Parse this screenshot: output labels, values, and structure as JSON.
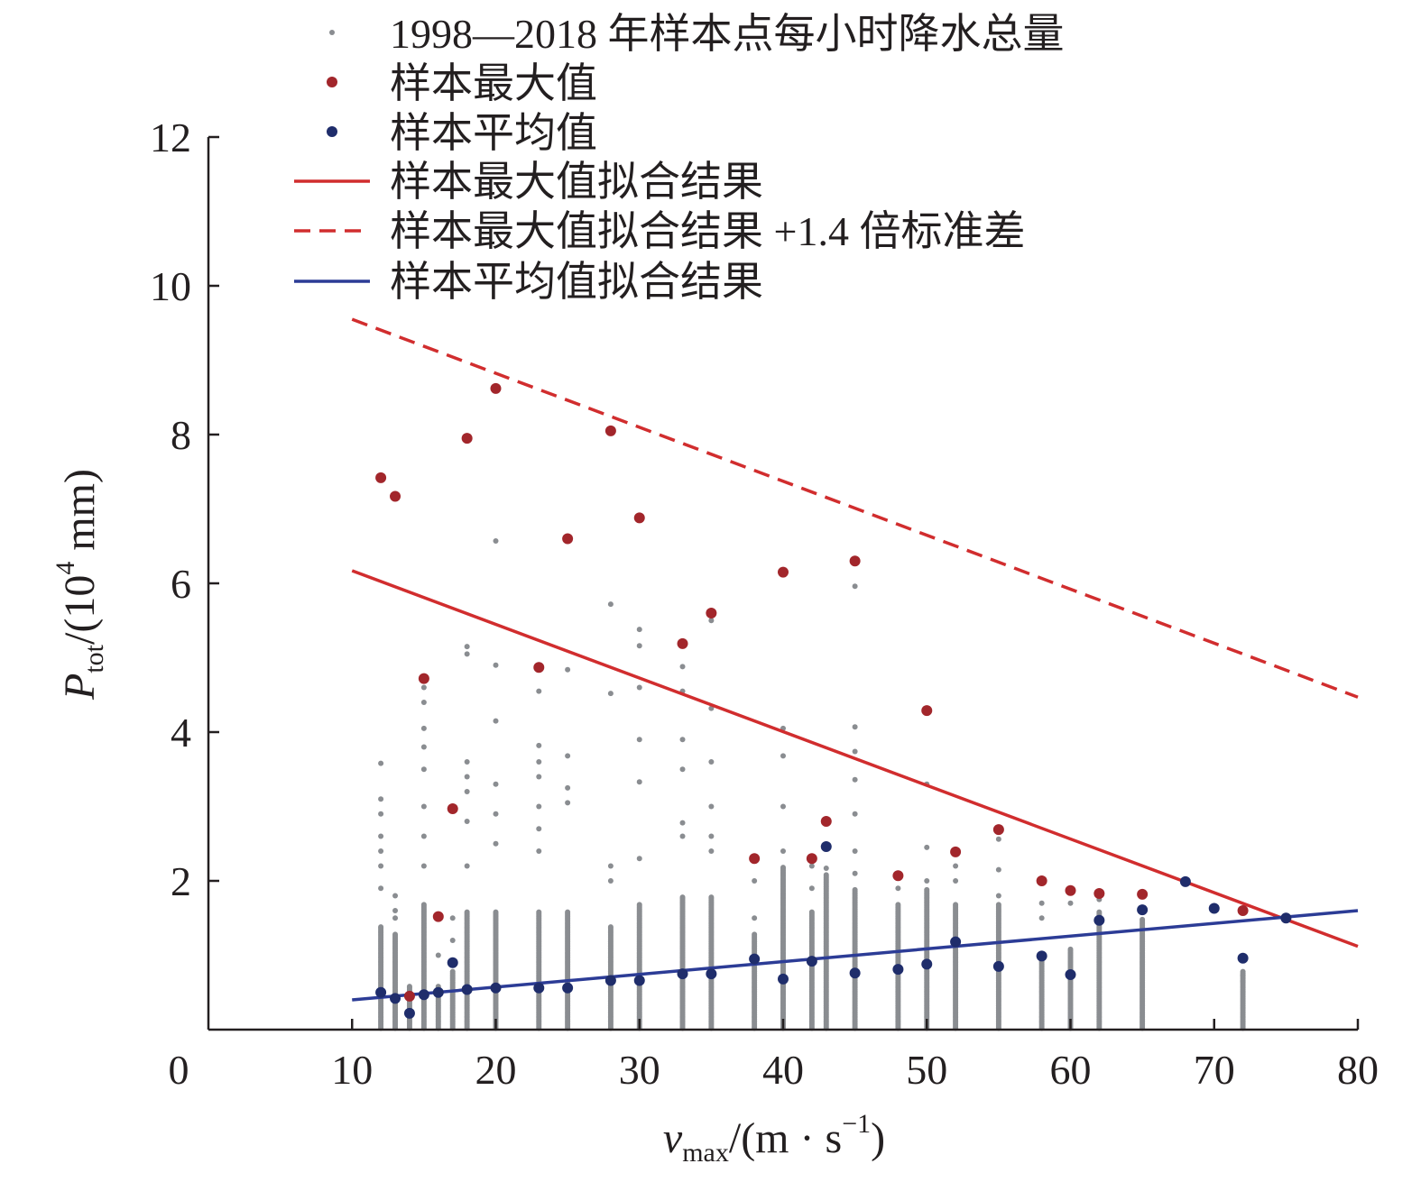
{
  "chart_data": {
    "type": "scatter",
    "xlabel": {
      "main": "v",
      "sub": "max",
      "unit_prefix": "/(m · s",
      "unit_sup": "−1",
      "unit_suffix": ")"
    },
    "ylabel": {
      "main": "P",
      "sub": "tot",
      "unit_prefix": "/(10",
      "unit_sup": "4",
      "unit_suffix": " mm)"
    },
    "xlim": [
      0,
      80
    ],
    "ylim": [
      0,
      12
    ],
    "x_ticks": [
      10,
      20,
      30,
      40,
      50,
      60,
      70,
      80
    ],
    "y_ticks": [
      2,
      4,
      6,
      8,
      10,
      12
    ],
    "origin_label": "0",
    "grid": false,
    "legend_position": "top",
    "legend": [
      {
        "label": "1998—2018 年样本点每小时降水总量",
        "marker": "small-dot",
        "color": "#8a8d91"
      },
      {
        "label": "样本最大值",
        "marker": "dot",
        "color": "#a2262b"
      },
      {
        "label": "样本平均值",
        "marker": "dot",
        "color": "#1f2d6b"
      },
      {
        "label": "样本最大值拟合结果",
        "marker": "solid-line",
        "color": "#d12d2e"
      },
      {
        "label": "样本最大值拟合结果 +1.4 倍标准差",
        "marker": "dashed-line",
        "color": "#d12d2e"
      },
      {
        "label": "样本平均值拟合结果",
        "marker": "solid-line",
        "color": "#2c3c96"
      }
    ],
    "series": [
      {
        "name": "样本最大值",
        "kind": "points",
        "color": "#a2262b",
        "x": [
          12,
          13,
          14,
          15,
          16,
          17,
          18,
          20,
          23,
          25,
          28,
          30,
          33,
          35,
          38,
          40,
          42,
          43,
          45,
          48,
          50,
          52,
          55,
          58,
          60,
          62,
          65,
          72
        ],
        "y": [
          7.42,
          7.17,
          0.45,
          4.72,
          1.52,
          2.97,
          7.95,
          8.62,
          4.87,
          6.6,
          8.05,
          6.88,
          5.19,
          5.6,
          2.3,
          6.15,
          2.3,
          2.8,
          6.3,
          2.07,
          4.29,
          2.39,
          2.69,
          2.0,
          1.87,
          1.83,
          1.82,
          1.6
        ]
      },
      {
        "name": "样本平均值",
        "kind": "points",
        "color": "#1f2d6b",
        "x": [
          12,
          13,
          14,
          15,
          16,
          17,
          18,
          20,
          23,
          25,
          28,
          30,
          33,
          35,
          38,
          40,
          42,
          43,
          45,
          48,
          50,
          52,
          55,
          58,
          60,
          62,
          65,
          68,
          70,
          72,
          75
        ],
        "y": [
          0.5,
          0.42,
          0.22,
          0.47,
          0.5,
          0.9,
          0.54,
          0.56,
          0.56,
          0.56,
          0.66,
          0.66,
          0.75,
          0.75,
          0.95,
          0.68,
          0.92,
          2.46,
          0.76,
          0.81,
          0.88,
          1.18,
          0.85,
          0.99,
          0.74,
          1.47,
          1.61,
          1.99,
          1.63,
          0.96,
          1.5
        ]
      },
      {
        "name": "样本最大值拟合结果",
        "kind": "line",
        "style": "solid",
        "color": "#d12d2e",
        "x": [
          10,
          80
        ],
        "y": [
          6.17,
          1.12
        ]
      },
      {
        "name": "样本最大值拟合结果 +1.4 倍标准差",
        "kind": "line",
        "style": "dashed",
        "color": "#d12d2e",
        "x": [
          10,
          80
        ],
        "y": [
          9.55,
          4.47
        ]
      },
      {
        "name": "样本平均值拟合结果",
        "kind": "line",
        "style": "solid",
        "color": "#2c3c96",
        "x": [
          10,
          80
        ],
        "y": [
          0.4,
          1.6
        ]
      },
      {
        "name": "1998—2018 年样本点每小时降水总量",
        "kind": "columns",
        "color": "#8a8d91",
        "note_values_are": "x, top_of_dense_band, scattered_outliers",
        "x": [
          12,
          13,
          14,
          15,
          16,
          17,
          18,
          20,
          23,
          25,
          28,
          30,
          33,
          35,
          38,
          40,
          42,
          43,
          45,
          48,
          50,
          52,
          55,
          58,
          60,
          62,
          65,
          72
        ],
        "dense_top": [
          1.4,
          1.3,
          0.6,
          1.7,
          0.6,
          0.8,
          1.6,
          1.6,
          1.6,
          1.6,
          1.4,
          1.7,
          1.8,
          1.8,
          1.3,
          2.2,
          1.6,
          2.1,
          1.9,
          1.7,
          1.9,
          1.7,
          1.7,
          1.0,
          1.1,
          1.6,
          1.5,
          0.8
        ],
        "outliers": [
          [
            3.58,
            3.1,
            2.9,
            2.6,
            2.4,
            2.2,
            1.9
          ],
          [
            1.8,
            1.6,
            1.5
          ],
          [],
          [
            4.6,
            4.4,
            4.05,
            3.8,
            3.5,
            3.0,
            2.6,
            2.2
          ],
          [
            1.0
          ],
          [
            1.5,
            1.2
          ],
          [
            5.15,
            5.05,
            3.6,
            3.4,
            3.2,
            2.8,
            2.2
          ],
          [
            6.57,
            4.9,
            4.15,
            3.3,
            2.9,
            2.5
          ],
          [
            4.55,
            3.82,
            3.6,
            3.4,
            3.0,
            2.7,
            2.4
          ],
          [
            4.84,
            3.68,
            3.25,
            3.05
          ],
          [
            5.72,
            4.52,
            2.2,
            2.0
          ],
          [
            5.38,
            5.16,
            4.6,
            3.9,
            3.33,
            2.3
          ],
          [
            4.88,
            4.55,
            3.9,
            3.5,
            2.78,
            2.6
          ],
          [
            5.5,
            4.32,
            3.6,
            3.0,
            2.6,
            2.4
          ],
          [
            2.0,
            1.5
          ],
          [
            4.05,
            3.68,
            3.0,
            2.4
          ],
          [
            2.2,
            1.9
          ],
          [
            2.17
          ],
          [
            5.96,
            4.07,
            3.74,
            3.36,
            2.9,
            2.4,
            2.1
          ],
          [
            2.1,
            1.9
          ],
          [
            3.3,
            2.45,
            2.0
          ],
          [
            2.38,
            2.2,
            2.0
          ],
          [
            2.56,
            2.15,
            1.8
          ],
          [
            1.7,
            1.5
          ],
          [
            1.7
          ],
          [
            1.75
          ],
          [],
          [
            0.73,
            0.65
          ]
        ]
      }
    ]
  }
}
